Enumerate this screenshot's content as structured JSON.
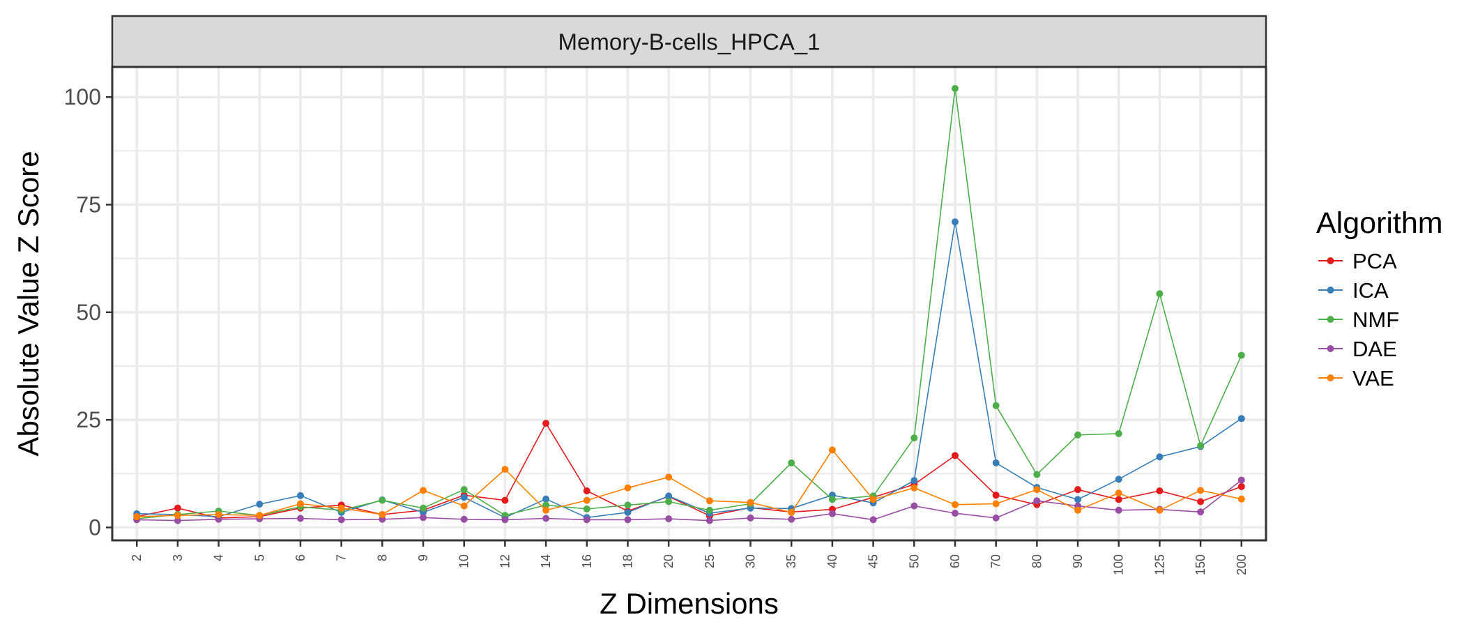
{
  "chart_data": {
    "type": "line",
    "facet_title": "Memory-B-cells_HPCA_1",
    "xlabel": "Z Dimensions",
    "ylabel": "Absolute Value Z Score",
    "ylim": [
      -3,
      107
    ],
    "yticks": [
      0,
      25,
      50,
      75,
      100
    ],
    "grid": true,
    "legend_position": "right",
    "legend_title": "Algorithm",
    "categories": [
      "2",
      "3",
      "4",
      "5",
      "6",
      "7",
      "8",
      "9",
      "10",
      "12",
      "14",
      "16",
      "18",
      "20",
      "25",
      "30",
      "35",
      "40",
      "45",
      "50",
      "60",
      "70",
      "80",
      "90",
      "100",
      "125",
      "150",
      "200"
    ],
    "series": [
      {
        "name": "PCA",
        "color": "#E41A1C",
        "values": [
          2.5,
          4.5,
          2.2,
          2.5,
          4.5,
          5.2,
          3.0,
          4.0,
          7.5,
          6.3,
          24.2,
          8.5,
          3.8,
          7.2,
          2.7,
          4.6,
          3.6,
          4.2,
          7.0,
          10.0,
          16.7,
          7.5,
          5.3,
          8.8,
          6.5,
          8.5,
          6.0,
          9.5
        ]
      },
      {
        "name": "ICA",
        "color": "#377EB8",
        "values": [
          3.2,
          3.0,
          2.5,
          5.4,
          7.4,
          3.5,
          6.4,
          3.5,
          7.0,
          2.3,
          6.6,
          2.3,
          3.5,
          7.3,
          3.3,
          4.5,
          4.4,
          7.5,
          5.7,
          10.9,
          71.0,
          15.0,
          9.3,
          6.5,
          11.2,
          16.4,
          18.8,
          25.3
        ]
      },
      {
        "name": "NMF",
        "color": "#4DAF4A",
        "values": [
          2.0,
          3.0,
          3.8,
          2.8,
          4.8,
          4.0,
          6.3,
          4.5,
          8.8,
          2.8,
          5.2,
          4.3,
          5.2,
          6.0,
          4.0,
          5.5,
          15.0,
          6.5,
          7.3,
          20.8,
          102.0,
          28.3,
          12.3,
          21.5,
          21.8,
          54.3,
          19.0,
          40.0
        ]
      },
      {
        "name": "DAE",
        "color": "#984EA3",
        "values": [
          1.8,
          1.6,
          1.9,
          2.0,
          2.1,
          1.8,
          1.9,
          2.3,
          1.9,
          1.8,
          2.1,
          1.8,
          1.8,
          2.0,
          1.6,
          2.2,
          1.9,
          3.2,
          1.8,
          5.0,
          3.3,
          2.2,
          6.2,
          5.0,
          4.0,
          4.2,
          3.6,
          11.0
        ]
      },
      {
        "name": "VAE",
        "color": "#FF7F00",
        "values": [
          2.5,
          2.8,
          3.0,
          2.8,
          5.5,
          4.5,
          3.0,
          8.6,
          5.0,
          13.5,
          4.0,
          6.3,
          9.2,
          11.7,
          6.2,
          5.8,
          3.5,
          18.0,
          6.5,
          9.2,
          5.3,
          5.5,
          8.8,
          4.0,
          8.0,
          4.0,
          8.6,
          6.6
        ]
      }
    ]
  }
}
